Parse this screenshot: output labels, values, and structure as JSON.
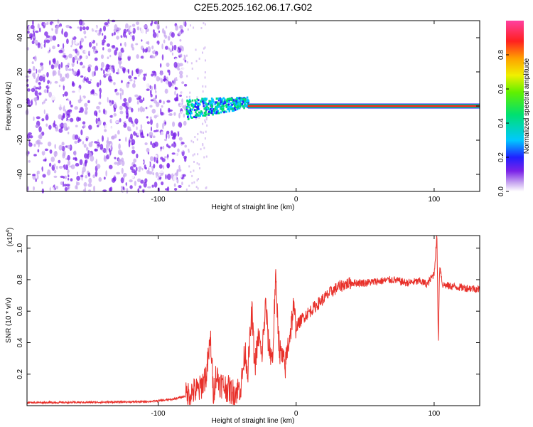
{
  "title": "C2E5.2025.162.06.17.G02",
  "chart_data": [
    {
      "type": "heatmap",
      "name": "spectrogram",
      "xlabel": "Height of straight line (km)",
      "ylabel": "Frequency (Hz)",
      "xlim": [
        -195,
        133
      ],
      "ylim": [
        -50,
        50
      ],
      "x_tick_labels": [
        "-100",
        "0",
        "100"
      ],
      "x_ticks": [
        -100,
        0,
        100
      ],
      "y_tick_labels": [
        "-40",
        "-20",
        "0",
        "20",
        "40"
      ],
      "y_ticks": [
        -40,
        -20,
        0,
        20,
        40
      ],
      "colorbar": {
        "label": "Normalized spectral amplitude",
        "range": [
          0.0,
          1.0
        ],
        "tick_labels": [
          "0.0",
          "0.2",
          "0.4",
          "0.6",
          "0.8"
        ],
        "ticks": [
          0.0,
          0.2,
          0.4,
          0.6,
          0.8
        ]
      },
      "regions": [
        {
          "x_range": [
            -195,
            -80
          ],
          "description": "broadband noise across all frequencies",
          "amplitude": 0.05
        },
        {
          "x_range": [
            -80,
            -35
          ],
          "freq_hz": [
            -5,
            5
          ],
          "amplitude": 0.4
        },
        {
          "x_range": [
            -35,
            133
          ],
          "freq_hz": 0,
          "amplitude": 1.0
        }
      ],
      "grid": false
    },
    {
      "type": "line",
      "name": "snr",
      "xlabel": "Height of straight line (km)",
      "ylabel": "SNR (10 * v/v)",
      "y_multiplier": "(x10^4)",
      "y_multiplier_base": "(x10",
      "y_multiplier_exp": "4",
      "xlim": [
        -195,
        133
      ],
      "ylim": [
        0,
        1.08
      ],
      "x_tick_labels": [
        "-100",
        "0",
        "100"
      ],
      "x_ticks": [
        -100,
        0,
        100
      ],
      "y_tick_labels": [
        "0.2",
        "0.4",
        "0.6",
        "0.8",
        "1.0"
      ],
      "y_ticks": [
        0.2,
        0.4,
        0.6,
        0.8,
        1.0
      ],
      "color": "#e8302a",
      "series": [
        {
          "x": [
            -195,
            -170,
            -140,
            -110,
            -100,
            -90,
            -80,
            -75,
            -70,
            -65,
            -62,
            -60,
            -58,
            -55,
            -50,
            -45,
            -40,
            -37,
            -35,
            -32,
            -30,
            -27,
            -25,
            -22,
            -20,
            -17,
            -15,
            -12,
            -10,
            -8,
            -6,
            -4,
            -2,
            0,
            5,
            10,
            15,
            20,
            25,
            30,
            35,
            40,
            50,
            60,
            70,
            80,
            90,
            95,
            100,
            102,
            103,
            104,
            106,
            110,
            120,
            133
          ],
          "y": [
            0.02,
            0.02,
            0.022,
            0.025,
            0.03,
            0.04,
            0.06,
            0.09,
            0.1,
            0.2,
            0.42,
            0.08,
            0.2,
            0.14,
            0.11,
            0.08,
            0.12,
            0.35,
            0.22,
            0.6,
            0.25,
            0.45,
            0.3,
            0.65,
            0.38,
            0.3,
            0.81,
            0.35,
            0.3,
            0.24,
            0.38,
            0.48,
            0.62,
            0.5,
            0.56,
            0.6,
            0.64,
            0.68,
            0.72,
            0.75,
            0.77,
            0.78,
            0.78,
            0.79,
            0.8,
            0.78,
            0.79,
            0.77,
            0.84,
            1.08,
            0.4,
            0.9,
            0.77,
            0.76,
            0.75,
            0.74
          ]
        }
      ],
      "grid": false
    }
  ]
}
